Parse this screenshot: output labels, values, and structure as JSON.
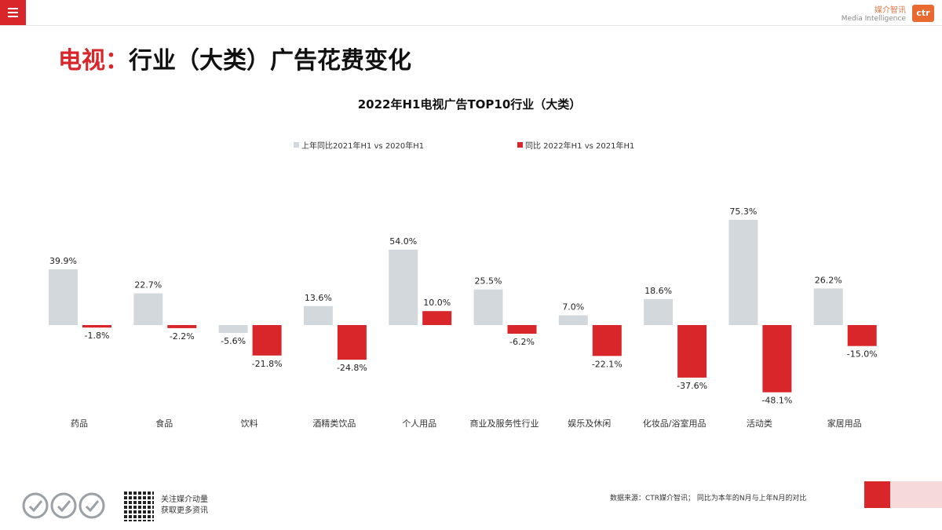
{
  "header": {
    "brand_cn": "媒介智讯",
    "brand_en": "Media Intelligence",
    "brand_logo": "ctr"
  },
  "page": {
    "title_accent": "电视：",
    "title_main": "行业（大类）广告花费变化"
  },
  "footer": {
    "follow_line1": "关注媒介动量",
    "follow_line2": "获取更多资讯",
    "source": "数据来源：CTR媒介智讯； 同比为本年的N月与上年N月的对比"
  },
  "colors": {
    "accent": "#d9262b",
    "series_prev": "#d3d8dc",
    "series_curr": "#d9262b"
  },
  "chart_data": {
    "type": "bar",
    "title": "2022年H1电视广告TOP10行业（大类）",
    "categories": [
      "药品",
      "食品",
      "饮料",
      "酒精类饮品",
      "个人用品",
      "商业及服务性行业",
      "娱乐及休闲",
      "化妆品/浴室用品",
      "活动类",
      "家居用品"
    ],
    "series": [
      {
        "name": "上年同比2021年H1  vs  2020年H1",
        "values": [
          39.9,
          22.7,
          -5.6,
          13.6,
          54.0,
          25.5,
          7.0,
          18.6,
          75.3,
          26.2
        ]
      },
      {
        "name": "同比 2022年H1  vs  2021年H1",
        "values": [
          -1.8,
          -2.2,
          -21.8,
          -24.8,
          10.0,
          -6.2,
          -22.1,
          -37.6,
          -48.1,
          -15.0
        ]
      }
    ],
    "value_suffix": "%",
    "legend_position": "top",
    "grid": false
  }
}
